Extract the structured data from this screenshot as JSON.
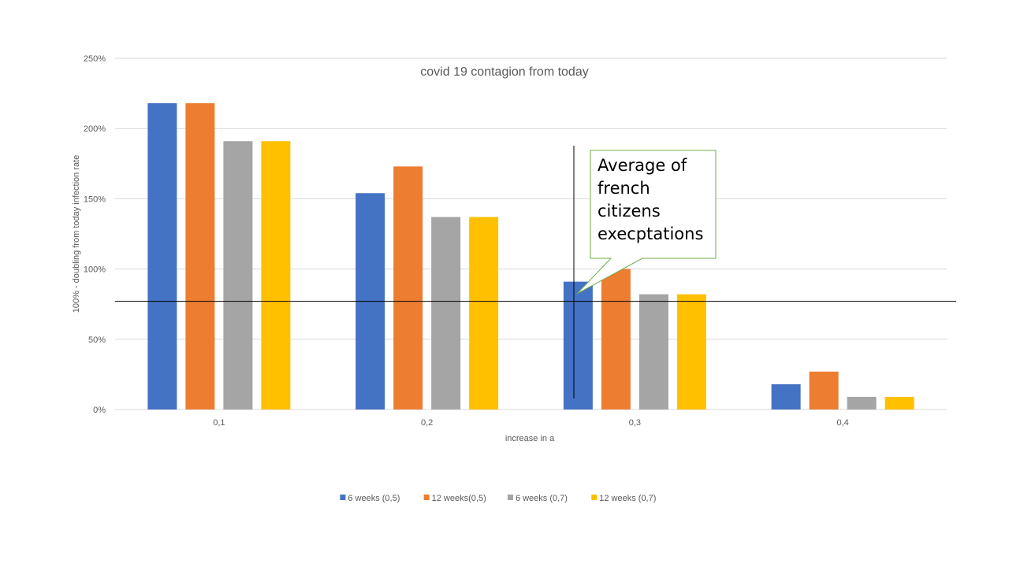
{
  "chart_data": {
    "type": "bar",
    "title": "covid 19 contagion from today",
    "xlabel": "increase in a",
    "ylabel": "100% - doubling from today infection rate",
    "categories": [
      "0,1",
      "0,2",
      "0,3",
      "0,4"
    ],
    "ylim": [
      0,
      250
    ],
    "yticks": [
      "0%",
      "50%",
      "100%",
      "150%",
      "200%",
      "250%"
    ],
    "grid": true,
    "legend_position": "bottom",
    "series": [
      {
        "name": "6 weeks (0,5)",
        "color": "#4472C4",
        "values": [
          218,
          154,
          91,
          18
        ]
      },
      {
        "name": "12 weeks(0,5)",
        "color": "#ED7D31",
        "values": [
          218,
          173,
          100,
          27
        ]
      },
      {
        "name": "6 weeks (0,7)",
        "color": "#A5A5A5",
        "values": [
          191,
          137,
          82,
          9
        ]
      },
      {
        "name": "12 weeks (0,7)",
        "color": "#FFC000",
        "values": [
          191,
          137,
          82,
          9
        ]
      }
    ],
    "annotation": {
      "text_lines": [
        "Average of",
        "french",
        "citizens",
        "execptations"
      ],
      "horizontal_line_value": 77,
      "border_color": "#70AD47"
    }
  }
}
